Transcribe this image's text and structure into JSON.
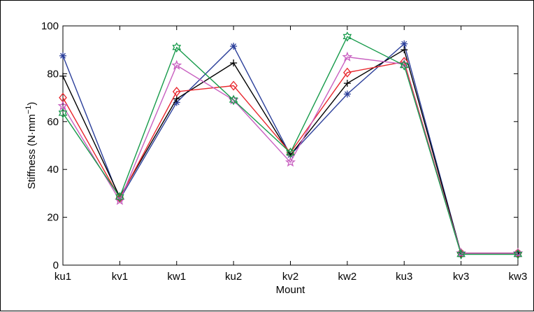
{
  "chart_data": {
    "type": "line",
    "title": "",
    "xlabel": "Mount",
    "ylabel": "Stiffness (N·mm",
    "ylabel_sup": "−1",
    "ylabel_end": ")",
    "categories": [
      "ku1",
      "kv1",
      "kw1",
      "ku2",
      "kv2",
      "kw2",
      "ku3",
      "kv3",
      "kw3"
    ],
    "ylim": [
      0,
      100
    ],
    "yticks": [
      0,
      20,
      40,
      60,
      80,
      100
    ],
    "grid": false,
    "legend": "none",
    "series": [
      {
        "color": "#2b3f9a",
        "marker": "asterisk",
        "values": [
          87.5,
          27.5,
          68,
          91.5,
          46,
          71.5,
          92.5,
          5,
          5
        ]
      },
      {
        "color": "#000000",
        "marker": "plus",
        "values": [
          79,
          28.5,
          69.5,
          84.5,
          46,
          76,
          90,
          5,
          5
        ]
      },
      {
        "color": "#e8262c",
        "marker": "diamond",
        "values": [
          70,
          28,
          72.5,
          75,
          47,
          80.5,
          85,
          5,
          5
        ]
      },
      {
        "color": "#c85fc0",
        "marker": "star",
        "values": [
          66.5,
          27,
          83.5,
          69,
          43,
          87,
          84,
          5,
          5
        ]
      },
      {
        "color": "#169a4a",
        "marker": "hexagram",
        "values": [
          63.5,
          28.5,
          91,
          69,
          47,
          95.5,
          83.5,
          4.5,
          4.5
        ]
      }
    ]
  }
}
